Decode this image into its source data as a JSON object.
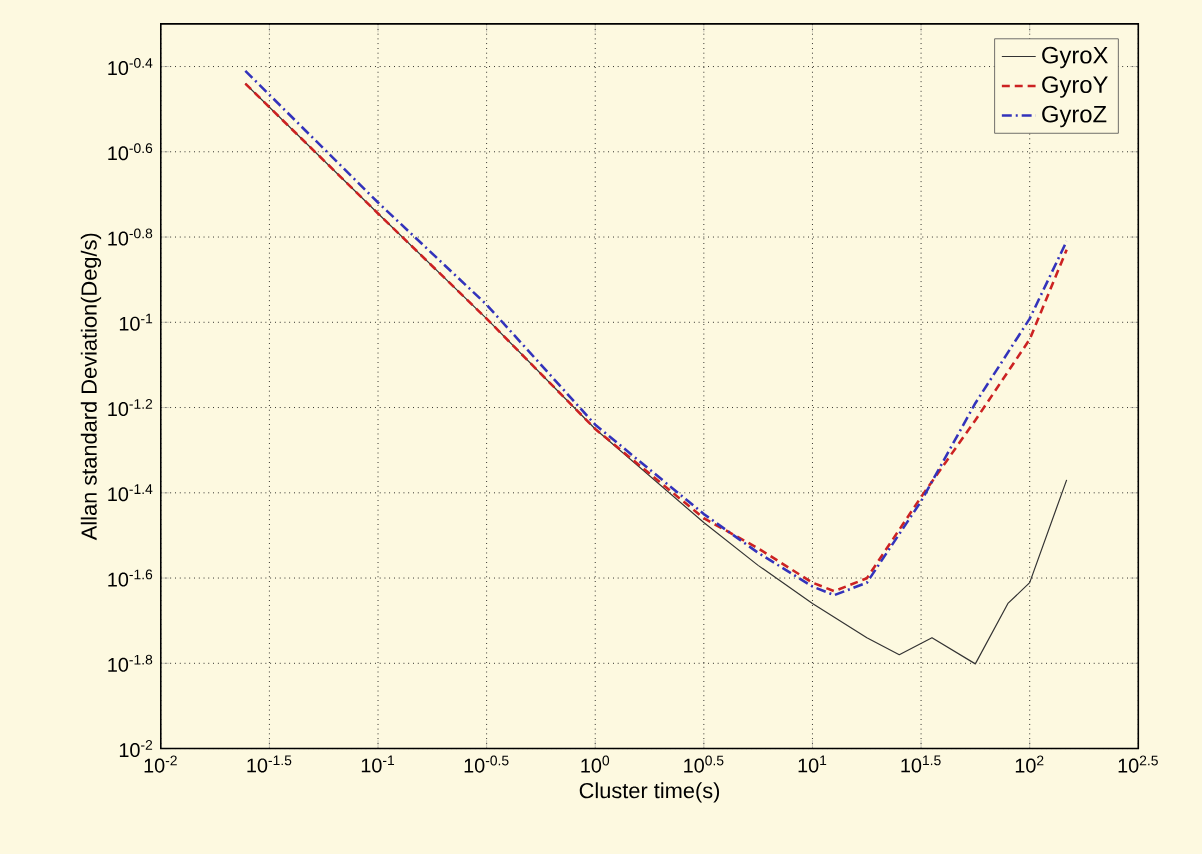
{
  "chart_data": {
    "type": "line",
    "xlabel": "Cluster time(s)",
    "ylabel": "Allan standard Deviation(Deg/s)",
    "log": "xy",
    "grid": true,
    "legend": "top right",
    "xlim": [
      0.01,
      316.2
    ],
    "ylim": [
      0.01,
      0.5012
    ],
    "xticks": [
      {
        "value": 0.01,
        "label": "10$^{-2}$"
      },
      {
        "value": 0.03162,
        "label": "10$^{-1.5}$"
      },
      {
        "value": 0.1,
        "label": "10$^{-1}$"
      },
      {
        "value": 0.3162,
        "label": "10$^{-0.5}$"
      },
      {
        "value": 1,
        "label": "10$^{0}$"
      },
      {
        "value": 3.162,
        "label": "10$^{0.5}$"
      },
      {
        "value": 10,
        "label": "10$^{1}$"
      },
      {
        "value": 31.62,
        "label": "10$^{1.5}$"
      },
      {
        "value": 100,
        "label": "10$^{2}$"
      },
      {
        "value": 316.2,
        "label": "10$^{2.5}$"
      }
    ],
    "yticks": [
      {
        "value": 0.01,
        "label": "10$^{-2}$"
      },
      {
        "value": 0.01585,
        "label": "10$^{-1.8}$"
      },
      {
        "value": 0.02512,
        "label": "10$^{-1.6}$"
      },
      {
        "value": 0.03981,
        "label": "10$^{-1.4}$"
      },
      {
        "value": 0.0631,
        "label": "10$^{-1.2}$"
      },
      {
        "value": 0.1,
        "label": "10$^{-1}$"
      },
      {
        "value": 0.1585,
        "label": "10$^{-0.8}$"
      },
      {
        "value": 0.2512,
        "label": "10$^{-0.6}$"
      },
      {
        "value": 0.3981,
        "label": "10$^{-0.4}$"
      }
    ],
    "series": [
      {
        "name": "GyroX",
        "color": "#333333",
        "line_style": "solid",
        "x": [
          0.0245,
          0.1,
          0.316,
          1,
          3.16,
          5.62,
          10,
          17.8,
          25.1,
          35.5,
          56.2,
          79.4,
          100,
          148
        ],
        "values": [
          0.363,
          0.18,
          0.102,
          0.0562,
          0.0339,
          0.0269,
          0.0219,
          0.0182,
          0.0166,
          0.0182,
          0.0158,
          0.0219,
          0.0245,
          0.0427
        ]
      },
      {
        "name": "GyroY",
        "color": "#cc2222",
        "line_style": "dashed",
        "x": [
          0.0245,
          0.1,
          0.316,
          1,
          3.16,
          5.62,
          10,
          12.6,
          17.8,
          31.6,
          56.2,
          100,
          148
        ],
        "values": [
          0.363,
          0.18,
          0.102,
          0.0562,
          0.0347,
          0.0295,
          0.0245,
          0.0234,
          0.0251,
          0.0389,
          0.0589,
          0.0912,
          0.148
        ]
      },
      {
        "name": "GyroZ",
        "color": "#3333bb",
        "line_style": "dashdotted",
        "x": [
          0.0245,
          0.1,
          0.316,
          1,
          3.16,
          5.62,
          10,
          12.6,
          17.8,
          31.6,
          56.2,
          100,
          148
        ],
        "values": [
          0.389,
          0.191,
          0.11,
          0.0575,
          0.0355,
          0.0288,
          0.024,
          0.0229,
          0.0245,
          0.038,
          0.0646,
          0.102,
          0.155
        ]
      }
    ]
  }
}
